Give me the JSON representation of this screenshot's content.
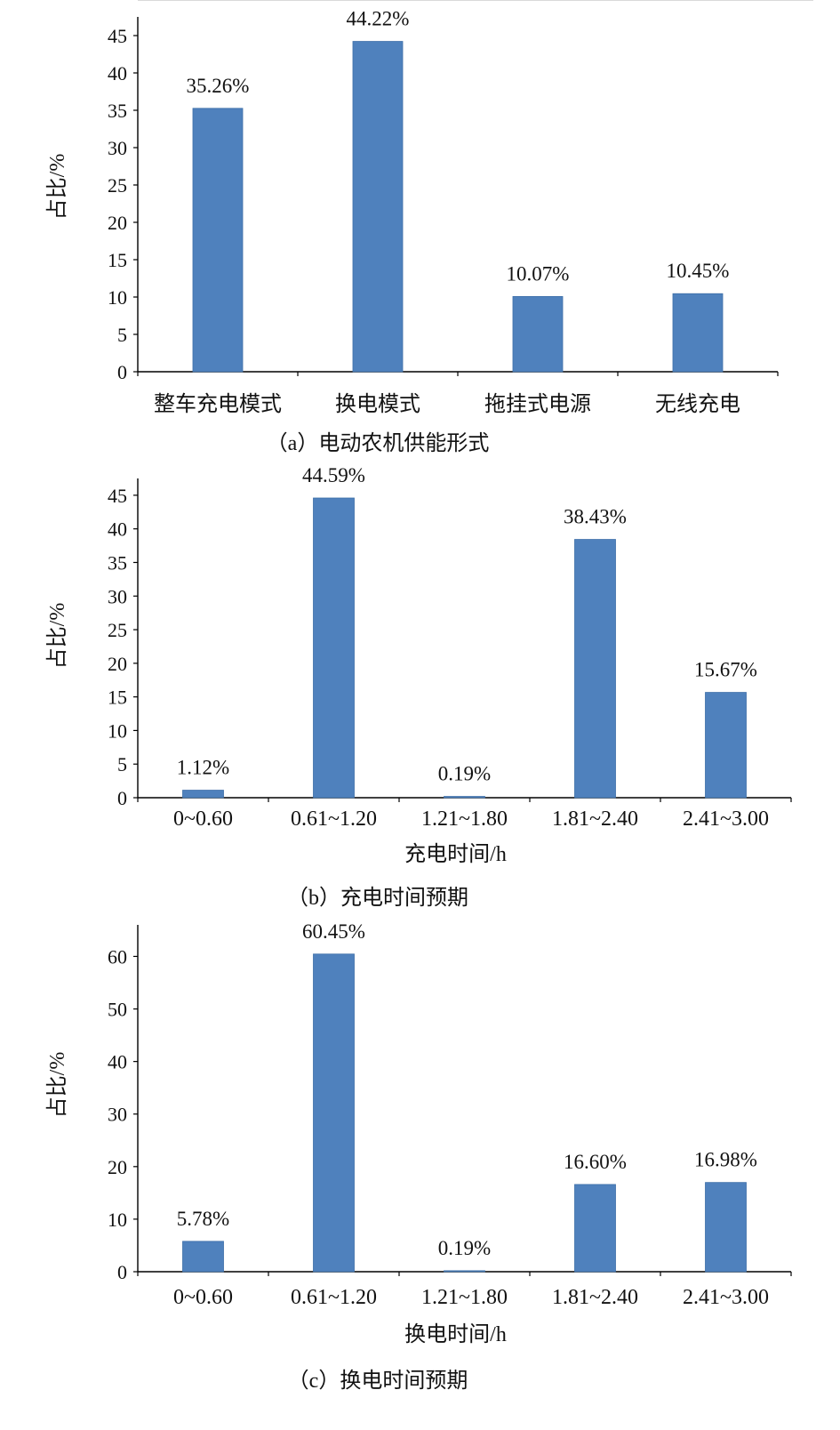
{
  "colors": {
    "bar": "#4f81bd",
    "axis": "#000000",
    "text": "#111111"
  },
  "chart_data": [
    {
      "type": "bar",
      "caption": "（a）电动农机供能形式",
      "title": "",
      "xlabel": "",
      "ylabel": "占比/%",
      "ylim": [
        0,
        45
      ],
      "yticks": [
        0,
        5,
        10,
        15,
        20,
        25,
        30,
        35,
        40,
        45
      ],
      "grid": false,
      "categories": [
        "整车充电模式",
        "换电模式",
        "拖挂式电源",
        "无线充电"
      ],
      "values": [
        35.26,
        44.22,
        10.07,
        10.45
      ],
      "data_labels": [
        "35.26%",
        "44.22%",
        "10.07%",
        "10.45%"
      ]
    },
    {
      "type": "bar",
      "caption": "（b）充电时间预期",
      "title": "",
      "xlabel": "充电时间/h",
      "ylabel": "占比/%",
      "ylim": [
        0,
        45
      ],
      "yticks": [
        0,
        5,
        10,
        15,
        20,
        25,
        30,
        35,
        40,
        45
      ],
      "grid": false,
      "categories": [
        "0~0.60",
        "0.61~1.20",
        "1.21~1.80",
        "1.81~2.40",
        "2.41~3.00"
      ],
      "values": [
        1.12,
        44.59,
        0.19,
        38.43,
        15.67
      ],
      "data_labels": [
        "1.12%",
        "44.59%",
        "0.19%",
        "38.43%",
        "15.67%"
      ]
    },
    {
      "type": "bar",
      "caption": "（c）换电时间预期",
      "title": "",
      "xlabel": "换电时间/h",
      "ylabel": "占比/%",
      "ylim": [
        0,
        60
      ],
      "yticks": [
        0,
        10,
        20,
        30,
        40,
        50,
        60
      ],
      "grid": false,
      "categories": [
        "0~0.60",
        "0.61~1.20",
        "1.21~1.80",
        "1.81~2.40",
        "2.41~3.00"
      ],
      "values": [
        5.78,
        60.45,
        0.19,
        16.6,
        16.98
      ],
      "data_labels": [
        "5.78%",
        "60.45%",
        "0.19%",
        "16.60%",
        "16.98%"
      ]
    }
  ]
}
